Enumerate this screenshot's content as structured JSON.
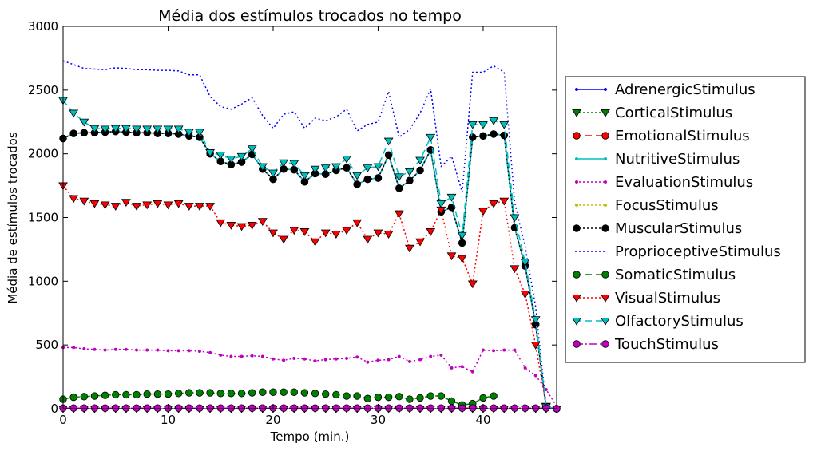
{
  "chart_data": {
    "type": "line",
    "title": "Média dos estímulos trocados no tempo",
    "xlabel": "Tempo (min.)",
    "ylabel": "Média de estímulos trocados",
    "xlim": [
      0,
      47
    ],
    "ylim": [
      0,
      3000
    ],
    "xticks": [
      0,
      10,
      20,
      30,
      40
    ],
    "yticks": [
      0,
      500,
      1000,
      1500,
      2000,
      2500,
      3000
    ],
    "grid": false,
    "legend_position": "right",
    "x": [
      0,
      1,
      2,
      3,
      4,
      5,
      6,
      7,
      8,
      9,
      10,
      11,
      12,
      13,
      14,
      15,
      16,
      17,
      18,
      19,
      20,
      21,
      22,
      23,
      24,
      25,
      26,
      27,
      28,
      29,
      30,
      31,
      32,
      33,
      34,
      35,
      36,
      37,
      38,
      39,
      40,
      41,
      42,
      43,
      44,
      45,
      46,
      47
    ],
    "series": [
      {
        "name": "AdrenergicStimulus",
        "color": "#0000ff",
        "dash": "",
        "marker": "smalldot",
        "values": [
          2120,
          2160,
          2165,
          2165,
          2170,
          2175,
          2170,
          2165,
          2165,
          2160,
          2160,
          2155,
          2140,
          2130,
          2000,
          1940,
          1915,
          1935,
          1995,
          1880,
          1800,
          1880,
          1875,
          1780,
          1845,
          1840,
          1870,
          1890,
          1760,
          1800,
          1810,
          1990,
          1730,
          1790,
          1870,
          2030,
          1545,
          1580,
          1300,
          2130,
          2140,
          2155,
          2145,
          1420,
          1120,
          660,
          10,
          0
        ]
      },
      {
        "name": "CorticalStimulus",
        "color": "#007f00",
        "dash": "2,3",
        "marker": "triangle",
        "values": [
          0,
          0,
          0,
          0,
          0,
          0,
          0,
          0,
          0,
          0,
          0,
          0,
          0,
          0,
          0,
          0,
          0,
          0,
          0,
          0,
          0,
          0,
          0,
          0,
          0,
          0,
          0,
          0,
          0,
          0,
          0,
          0,
          0,
          0,
          0,
          0,
          0,
          0,
          0,
          0,
          0,
          0,
          0,
          0,
          0,
          0,
          0,
          0
        ]
      },
      {
        "name": "EmotionalStimulus",
        "color": "#ff0000",
        "dash": "8,5",
        "marker": "circle",
        "values": [
          2120,
          2160,
          2165,
          2165,
          2170,
          2175,
          2170,
          2165,
          2165,
          2160,
          2160,
          2155,
          2140,
          2130,
          2000,
          1940,
          1915,
          1935,
          1995,
          1880,
          1800,
          1880,
          1875,
          1780,
          1845,
          1840,
          1870,
          1890,
          1760,
          1800,
          1810,
          1990,
          1730,
          1790,
          1870,
          2030,
          1545,
          1580,
          1300,
          2130,
          2140,
          2155,
          2145,
          1420,
          1120,
          660,
          10,
          0
        ]
      },
      {
        "name": "NutritiveStimulus",
        "color": "#00bfbf",
        "dash": "",
        "marker": "smalldot",
        "values": [
          2120,
          2160,
          2165,
          2165,
          2170,
          2175,
          2170,
          2165,
          2165,
          2160,
          2160,
          2155,
          2140,
          2130,
          2000,
          1940,
          1915,
          1935,
          1995,
          1880,
          1800,
          1880,
          1875,
          1780,
          1845,
          1840,
          1870,
          1890,
          1760,
          1800,
          1810,
          1990,
          1730,
          1790,
          1870,
          2030,
          1545,
          1580,
          1300,
          2130,
          2140,
          2155,
          2145,
          1420,
          1120,
          660,
          10,
          0
        ]
      },
      {
        "name": "EvaluationStimulus",
        "color": "#bf00bf",
        "dash": "2,3",
        "marker": "smalldot",
        "values": [
          480,
          480,
          470,
          465,
          460,
          465,
          465,
          460,
          460,
          460,
          455,
          455,
          455,
          450,
          440,
          420,
          410,
          410,
          415,
          410,
          390,
          380,
          395,
          390,
          375,
          385,
          390,
          395,
          405,
          365,
          380,
          385,
          410,
          370,
          385,
          410,
          420,
          320,
          330,
          290,
          460,
          455,
          460,
          460,
          320,
          260,
          150,
          20
        ]
      },
      {
        "name": "FocusStimulus",
        "color": "#bfbf00",
        "dash": "2,3",
        "marker": "smalldot",
        "values": [
          0,
          0,
          0,
          0,
          0,
          0,
          0,
          0,
          0,
          0,
          0,
          0,
          0,
          0,
          0,
          0,
          0,
          0,
          0,
          0,
          0,
          0,
          0,
          0,
          0,
          0,
          0,
          0,
          0,
          0,
          0,
          0,
          0,
          0,
          0,
          0,
          0,
          0,
          0,
          0,
          0,
          0,
          0,
          0,
          0,
          0,
          0,
          0
        ]
      },
      {
        "name": "MuscularStimulus",
        "color": "#000000",
        "dash": "2,3",
        "marker": "circle",
        "values": [
          2120,
          2160,
          2165,
          2165,
          2170,
          2175,
          2170,
          2165,
          2165,
          2160,
          2160,
          2155,
          2140,
          2130,
          2000,
          1940,
          1915,
          1935,
          1995,
          1880,
          1800,
          1880,
          1875,
          1780,
          1845,
          1840,
          1870,
          1890,
          1760,
          1800,
          1810,
          1990,
          1730,
          1790,
          1870,
          2030,
          1545,
          1580,
          1300,
          2130,
          2140,
          2155,
          2145,
          1420,
          1120,
          660,
          10,
          0
        ]
      },
      {
        "name": "ProprioceptiveStimulus",
        "color": "#0000ff",
        "dash": "2,3",
        "marker": "none",
        "values": [
          2730,
          2700,
          2670,
          2665,
          2660,
          2675,
          2670,
          2660,
          2660,
          2655,
          2655,
          2650,
          2620,
          2620,
          2450,
          2370,
          2350,
          2390,
          2440,
          2300,
          2200,
          2310,
          2330,
          2200,
          2280,
          2260,
          2290,
          2350,
          2180,
          2230,
          2250,
          2490,
          2130,
          2190,
          2320,
          2510,
          1900,
          1980,
          1700,
          2640,
          2640,
          2690,
          2640,
          1620,
          1270,
          800,
          20,
          0
        ]
      },
      {
        "name": "SomaticStimulus",
        "color": "#007f00",
        "dash": "8,5",
        "marker": "circle",
        "values": [
          75,
          90,
          95,
          100,
          105,
          110,
          110,
          110,
          115,
          115,
          115,
          120,
          125,
          125,
          125,
          120,
          120,
          120,
          125,
          130,
          130,
          130,
          130,
          125,
          120,
          115,
          110,
          100,
          100,
          80,
          90,
          90,
          95,
          75,
          85,
          100,
          100,
          60,
          30,
          40,
          85,
          100,
          null,
          null,
          null,
          null,
          null,
          null
        ]
      },
      {
        "name": "VisualStimulus",
        "color": "#ff0000",
        "dash": "2,3",
        "marker": "triangle",
        "values": [
          1750,
          1650,
          1630,
          1610,
          1600,
          1590,
          1620,
          1590,
          1600,
          1610,
          1600,
          1610,
          1590,
          1590,
          1590,
          1460,
          1440,
          1430,
          1440,
          1470,
          1380,
          1330,
          1400,
          1390,
          1310,
          1380,
          1370,
          1400,
          1460,
          1330,
          1380,
          1370,
          1530,
          1260,
          1310,
          1390,
          1560,
          1200,
          1180,
          980,
          1550,
          1610,
          1630,
          1100,
          900,
          500,
          20,
          0
        ]
      },
      {
        "name": "OlfactoryStimulus",
        "color": "#00bfbf",
        "dash": "8,5",
        "marker": "triangle",
        "values": [
          2420,
          2320,
          2250,
          2200,
          2195,
          2200,
          2200,
          2195,
          2195,
          2195,
          2195,
          2195,
          2170,
          2170,
          2010,
          1990,
          1960,
          1980,
          2040,
          1900,
          1850,
          1930,
          1925,
          1830,
          1880,
          1890,
          1900,
          1960,
          1830,
          1890,
          1900,
          2100,
          1820,
          1860,
          1950,
          2130,
          1610,
          1660,
          1360,
          2230,
          2230,
          2260,
          2230,
          1500,
          1150,
          700,
          15,
          0
        ]
      },
      {
        "name": "TouchStimulus",
        "color": "#bf00bf",
        "dash": "10,3,2,3",
        "marker": "circle",
        "values": [
          5,
          5,
          5,
          5,
          5,
          5,
          5,
          5,
          5,
          5,
          5,
          5,
          5,
          5,
          5,
          5,
          5,
          5,
          5,
          5,
          5,
          5,
          5,
          5,
          5,
          5,
          5,
          5,
          5,
          5,
          5,
          5,
          5,
          5,
          5,
          5,
          5,
          5,
          5,
          5,
          5,
          5,
          5,
          5,
          5,
          5,
          5,
          0
        ]
      }
    ]
  }
}
